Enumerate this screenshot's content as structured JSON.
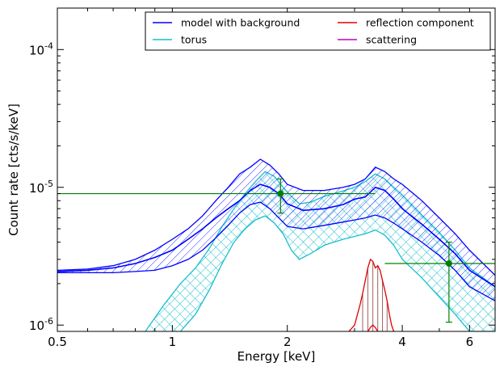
{
  "chart_data": {
    "type": "line",
    "xlabel": "Energy [keV]",
    "ylabel": "Count rate [cts/s/keV]",
    "x_scale": "log",
    "y_scale": "log",
    "xlim": [
      0.5,
      7.0
    ],
    "ylim": [
      9e-07,
      0.0002
    ],
    "x_ticks": [
      {
        "value": 0.5,
        "label": "0.5"
      },
      {
        "value": 1,
        "label": "1"
      },
      {
        "value": 2,
        "label": "2"
      },
      {
        "value": 4,
        "label": "4"
      },
      {
        "value": 6,
        "label": "6"
      }
    ],
    "y_ticks": [
      {
        "value": 1e-06,
        "base": "10",
        "exp": "-6"
      },
      {
        "value": 1e-05,
        "base": "10",
        "exp": "-5"
      },
      {
        "value": 0.0001,
        "base": "10",
        "exp": "-4"
      }
    ],
    "legend": {
      "placement": "top-right",
      "columns": 2,
      "entries": [
        {
          "label": "model with background",
          "color": "#0000ff"
        },
        {
          "label": "reflection component",
          "color": "#e00000"
        },
        {
          "label": "torus",
          "color": "#17becf"
        },
        {
          "label": "scattering",
          "color": "#bf00bf"
        }
      ]
    },
    "series": [
      {
        "name": "model with background",
        "color": "#0000ff",
        "x": [
          0.5,
          0.6,
          0.7,
          0.8,
          0.9,
          1.0,
          1.1,
          1.2,
          1.3,
          1.4,
          1.5,
          1.6,
          1.7,
          1.8,
          1.9,
          2.0,
          2.2,
          2.5,
          2.8,
          3.0,
          3.2,
          3.4,
          3.6,
          3.8,
          4.0,
          4.5,
          5.0,
          5.5,
          6.0,
          7.0
        ],
        "lower": [
          2.4e-06,
          2.4e-06,
          2.4e-06,
          2.45e-06,
          2.5e-06,
          2.7e-06,
          3e-06,
          3.5e-06,
          4.3e-06,
          5.3e-06,
          6.5e-06,
          7.5e-06,
          7.8e-06,
          7e-06,
          6e-06,
          5.2e-06,
          5e-06,
          5.3e-06,
          5.6e-06,
          5.8e-06,
          6e-06,
          6.3e-06,
          6e-06,
          5.5e-06,
          5e-06,
          4e-06,
          3.2e-06,
          2.5e-06,
          1.9e-06,
          1.5e-06
        ],
        "mid": [
          2.45e-06,
          2.5e-06,
          2.6e-06,
          2.8e-06,
          3.1e-06,
          3.5e-06,
          4.2e-06,
          5e-06,
          6e-06,
          7e-06,
          8e-06,
          9.5e-06,
          1.05e-05,
          1e-05,
          9e-06,
          7.6e-06,
          6.8e-06,
          7e-06,
          7.5e-06,
          8.2e-06,
          8.5e-06,
          1e-05,
          9.5e-06,
          8.2e-06,
          7e-06,
          5.4e-06,
          4.2e-06,
          3.3e-06,
          2.5e-06,
          1.9e-06
        ],
        "upper": [
          2.5e-06,
          2.55e-06,
          2.7e-06,
          3e-06,
          3.5e-06,
          4.2e-06,
          5e-06,
          6.2e-06,
          8e-06,
          1e-05,
          1.25e-05,
          1.4e-05,
          1.6e-05,
          1.45e-05,
          1.25e-05,
          1.05e-05,
          9.5e-06,
          9.5e-06,
          1e-05,
          1.05e-05,
          1.15e-05,
          1.4e-05,
          1.3e-05,
          1.15e-05,
          1.05e-05,
          8e-06,
          6e-06,
          4.6e-06,
          3.5e-06,
          2.3e-06
        ]
      },
      {
        "name": "torus",
        "color": "#17becf",
        "x": [
          0.85,
          0.95,
          1.05,
          1.15,
          1.25,
          1.35,
          1.45,
          1.55,
          1.65,
          1.75,
          1.85,
          1.95,
          2.05,
          2.15,
          2.3,
          2.5,
          2.8,
          3.0,
          3.2,
          3.4,
          3.6,
          3.8,
          4.0,
          4.5,
          5.0,
          5.5,
          6.0,
          7.0
        ],
        "lower": [
          null,
          null,
          9e-07,
          1.2e-06,
          1.8e-06,
          2.8e-06,
          4e-06,
          5e-06,
          5.8e-06,
          6.2e-06,
          5.5e-06,
          4.6e-06,
          3.5e-06,
          3e-06,
          3.3e-06,
          3.8e-06,
          4.2e-06,
          4.4e-06,
          4.6e-06,
          4.9e-06,
          4.5e-06,
          3.8e-06,
          3e-06,
          2.2e-06,
          1.6e-06,
          1.2e-06,
          9e-07,
          9e-07
        ],
        "upper": [
          9e-07,
          1.4e-06,
          2e-06,
          2.6e-06,
          3.6e-06,
          5.2e-06,
          7e-06,
          9e-06,
          1.1e-05,
          1.3e-05,
          1.2e-05,
          1e-05,
          8.6e-06,
          7.6e-06,
          7.8e-06,
          8.6e-06,
          9.4e-06,
          1e-05,
          1.1e-05,
          1.25e-05,
          1.15e-05,
          1e-05,
          8.8e-06,
          6.3e-06,
          4.7e-06,
          3.5e-06,
          2.6e-06,
          1.9e-06
        ]
      },
      {
        "name": "reflection component",
        "color": "#e00000",
        "x": [
          2.9,
          3.0,
          3.1,
          3.15,
          3.2,
          3.25,
          3.3,
          3.35,
          3.4,
          3.45,
          3.5,
          3.55,
          3.6,
          3.65,
          3.7,
          3.75,
          3.8
        ],
        "y": [
          9e-07,
          1e-06,
          1.4e-06,
          1.7e-06,
          2.1e-06,
          2.6e-06,
          3e-06,
          2.9e-06,
          2.6e-06,
          2.7e-06,
          2.5e-06,
          2.1e-06,
          1.8e-06,
          1.5e-06,
          1.2e-06,
          1e-06,
          9e-07
        ],
        "lower_x": [
          3.25,
          3.3,
          3.35,
          3.4,
          3.45
        ],
        "lower_y": [
          9e-07,
          9.6e-07,
          1e-06,
          9.6e-07,
          9e-07
        ]
      },
      {
        "name": "data",
        "color": "#008000",
        "points": [
          {
            "x": 1.92,
            "y": 9e-06,
            "xmin": 0.5,
            "xmax": 3.4,
            "ymin": 6.5e-06,
            "ymax": 1.15e-05
          },
          {
            "x": 5.3,
            "y": 2.8e-06,
            "xmin": 3.6,
            "xmax": 7.0,
            "ymin": 1.05e-06,
            "ymax": 4e-06
          }
        ]
      }
    ]
  }
}
